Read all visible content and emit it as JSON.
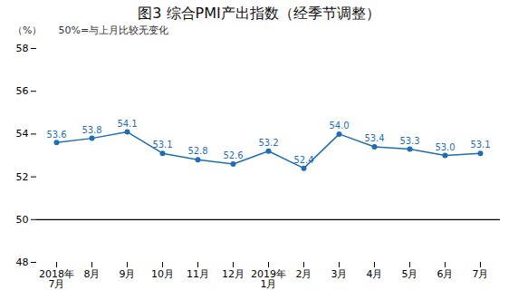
{
  "chart_data": {
    "type": "line",
    "title": "图3 综合PMI产出指数（经季节调整）",
    "ylabel": "（%）",
    "annotation": "50%=与上月比较无变化",
    "categories": [
      "2018年\n7月",
      "8月",
      "9月",
      "10月",
      "11月",
      "12月",
      "2019年\n1月",
      "2月",
      "3月",
      "4月",
      "5月",
      "6月",
      "7月"
    ],
    "values": [
      53.6,
      53.8,
      54.1,
      53.1,
      52.8,
      52.6,
      53.2,
      52.4,
      54.0,
      53.4,
      53.3,
      53.0,
      53.1
    ],
    "value_labels": [
      "53.6",
      "53.8",
      "54.1",
      "53.1",
      "52.8",
      "52.6",
      "53.2",
      "52.4",
      "54.0",
      "53.4",
      "53.3",
      "53.0",
      "53.1"
    ],
    "color": "#1f6eb5",
    "marker": "circle",
    "data_labels": true,
    "reference_line": {
      "y": 50,
      "color": "#000000"
    },
    "ylim": [
      48,
      58
    ],
    "yticks": [
      48,
      50,
      52,
      54,
      56,
      58
    ],
    "grid": false
  }
}
